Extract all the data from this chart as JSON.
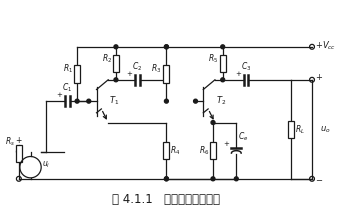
{
  "title": "图 4.1.1   阻容耦合放大电路",
  "title_fontsize": 8.5,
  "bg_color": "#ffffff",
  "line_color": "#1a1a1a",
  "figsize": [
    3.4,
    2.13
  ],
  "dpi": 100
}
